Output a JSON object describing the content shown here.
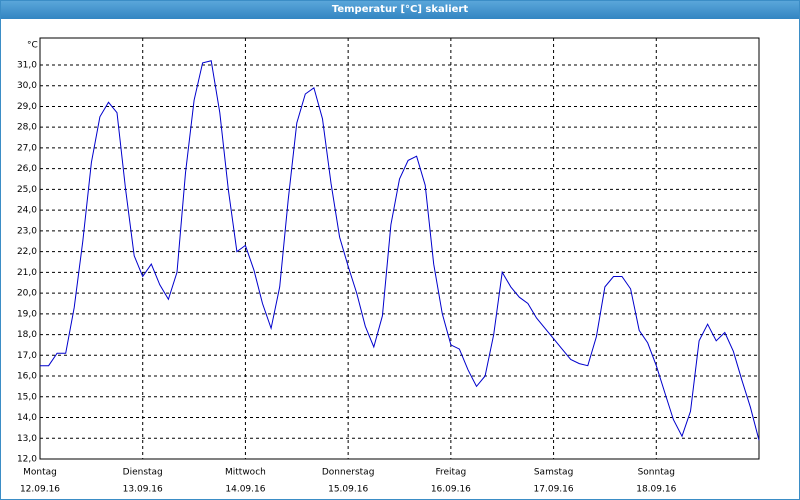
{
  "window_title": "Temperatur [°C] skaliert",
  "chart_data": {
    "type": "line",
    "y_unit": "°C",
    "color": "#0000cc",
    "grid": true,
    "xlim": [
      0,
      168
    ],
    "xticks": [
      0,
      24,
      48,
      72,
      96,
      120,
      144
    ],
    "x_tick_labels": [
      [
        "Montag",
        "12.09.16"
      ],
      [
        "Dienstag",
        "13.09.16"
      ],
      [
        "Mittwoch",
        "14.09.16"
      ],
      [
        "Donnerstag",
        "15.09.16"
      ],
      [
        "Freitag",
        "16.09.16"
      ],
      [
        "Samstag",
        "17.09.16"
      ],
      [
        "Sonntag",
        "18.09.16"
      ]
    ],
    "ylim": [
      12,
      32.3
    ],
    "yticks": [
      {
        "value": 12,
        "label": "12,0"
      },
      {
        "value": 13,
        "label": "13,0"
      },
      {
        "value": 14,
        "label": "14,0"
      },
      {
        "value": 15,
        "label": "15,0"
      },
      {
        "value": 16,
        "label": "16,0"
      },
      {
        "value": 17,
        "label": "17,0"
      },
      {
        "value": 18,
        "label": "18,0"
      },
      {
        "value": 19,
        "label": "19,0"
      },
      {
        "value": 20,
        "label": "20,0"
      },
      {
        "value": 21,
        "label": "21,0"
      },
      {
        "value": 22,
        "label": "22,0"
      },
      {
        "value": 23,
        "label": "23,0"
      },
      {
        "value": 24,
        "label": "24,0"
      },
      {
        "value": 25,
        "label": "25,0"
      },
      {
        "value": 26,
        "label": "26,0"
      },
      {
        "value": 27,
        "label": "27,0"
      },
      {
        "value": 28,
        "label": "28,0"
      },
      {
        "value": 29,
        "label": "29,0"
      },
      {
        "value": 30,
        "label": "30,0"
      },
      {
        "value": 31,
        "label": "31,0"
      }
    ],
    "x": [
      0,
      2,
      4,
      6,
      8,
      10,
      12,
      14,
      16,
      18,
      20,
      22,
      24,
      26,
      28,
      30,
      32,
      34,
      36,
      38,
      40,
      42,
      44,
      46,
      48,
      50,
      52,
      54,
      56,
      58,
      60,
      62,
      64,
      66,
      68,
      70,
      72,
      74,
      76,
      78,
      80,
      82,
      84,
      86,
      88,
      90,
      92,
      94,
      96,
      98,
      100,
      102,
      104,
      106,
      108,
      110,
      112,
      114,
      116,
      118,
      120,
      122,
      124,
      126,
      128,
      130,
      132,
      134,
      136,
      138,
      140,
      142,
      144,
      146,
      148,
      150,
      152,
      154,
      156,
      158,
      160,
      162,
      164,
      166,
      168
    ],
    "values": [
      16.5,
      16.5,
      17.1,
      17.1,
      19.3,
      22.5,
      26.3,
      28.5,
      29.2,
      28.7,
      25.0,
      21.8,
      20.8,
      21.4,
      20.4,
      19.7,
      21.0,
      25.8,
      29.3,
      31.1,
      31.2,
      28.7,
      25.0,
      22.0,
      22.3,
      21.1,
      19.5,
      18.3,
      20.3,
      24.5,
      28.2,
      29.6,
      29.9,
      28.4,
      25.3,
      22.7,
      21.3,
      20.0,
      18.4,
      17.4,
      18.9,
      23.3,
      25.5,
      26.4,
      26.6,
      25.2,
      21.4,
      19.0,
      17.5,
      17.3,
      16.3,
      15.5,
      16.0,
      18.0,
      21.0,
      20.3,
      19.8,
      19.5,
      18.8,
      18.3,
      17.8,
      17.3,
      16.8,
      16.6,
      16.5,
      17.9,
      20.3,
      20.8,
      20.8,
      20.2,
      18.2,
      17.6,
      16.5,
      15.2,
      13.9,
      13.1,
      14.3,
      17.7,
      18.5,
      17.7,
      18.1,
      17.2,
      15.8,
      14.5,
      12.9
    ]
  }
}
